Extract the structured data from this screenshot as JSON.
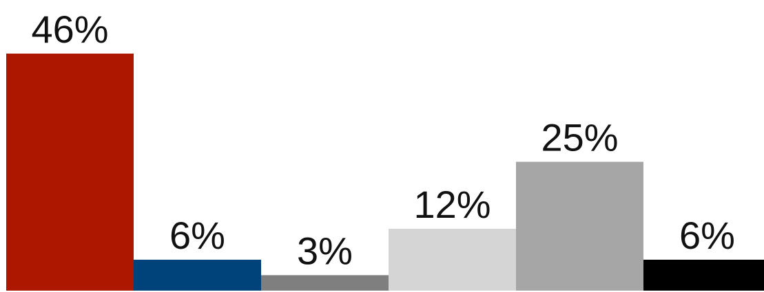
{
  "chart_data": {
    "type": "bar",
    "categories": [
      "",
      "",
      "",
      "",
      "",
      ""
    ],
    "values": [
      46,
      6,
      3,
      12,
      25,
      6
    ],
    "labels": [
      "46%",
      "6%",
      "3%",
      "12%",
      "25%",
      "6%"
    ],
    "colors": [
      "#AD1700",
      "#00437A",
      "#7F7F7F",
      "#D5D5D5",
      "#A6A6A6",
      "#000000"
    ],
    "title": "",
    "xlabel": "",
    "ylabel": "",
    "ylim": [
      0,
      46
    ],
    "grid": false,
    "legend": "none"
  }
}
